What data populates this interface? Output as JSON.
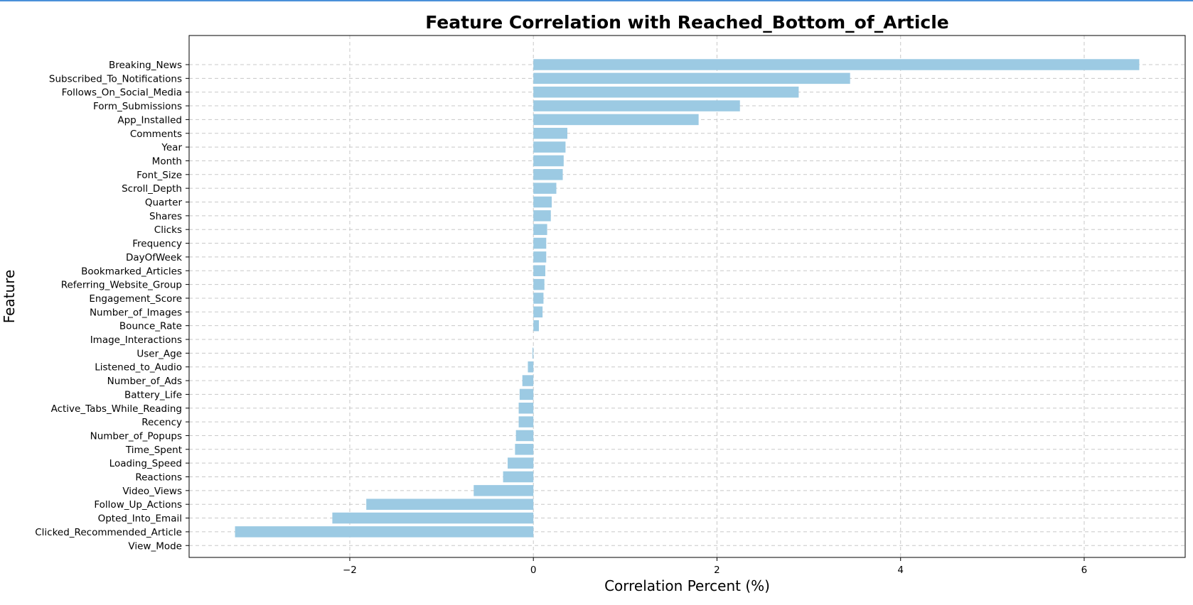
{
  "chart_data": {
    "type": "bar",
    "orientation": "horizontal",
    "title": "Feature Correlation with Reached_Bottom_of_Article",
    "xlabel": "Correlation Percent (%)",
    "ylabel": "Feature",
    "xlim": [
      -3.75,
      7.1
    ],
    "xticks": [
      -2,
      0,
      2,
      4,
      6
    ],
    "xtick_labels": [
      "−2",
      "0",
      "2",
      "4",
      "6"
    ],
    "grid": true,
    "bar_color": "#9ccae3",
    "categories": [
      "Breaking_News",
      "Subscribed_To_Notifications",
      "Follows_On_Social_Media",
      "Form_Submissions",
      "App_Installed",
      "Comments",
      "Year",
      "Month",
      "Font_Size",
      "Scroll_Depth",
      "Quarter",
      "Shares",
      "Clicks",
      "Frequency",
      "DayOfWeek",
      "Bookmarked_Articles",
      "Referring_Website_Group",
      "Engagement_Score",
      "Number_of_Images",
      "Bounce_Rate",
      "Image_Interactions",
      "User_Age",
      "Listened_to_Audio",
      "Number_of_Ads",
      "Battery_Life",
      "Active_Tabs_While_Reading",
      "Recency",
      "Number_of_Popups",
      "Time_Spent",
      "Loading_Speed",
      "Reactions",
      "Video_Views",
      "Follow_Up_Actions",
      "Opted_Into_Email",
      "Clicked_Recommended_Article",
      "View_Mode"
    ],
    "values": [
      6.6,
      3.45,
      2.89,
      2.25,
      1.8,
      0.37,
      0.35,
      0.33,
      0.32,
      0.25,
      0.2,
      0.19,
      0.15,
      0.14,
      0.14,
      0.13,
      0.12,
      0.11,
      0.1,
      0.06,
      0.0,
      -0.01,
      -0.06,
      -0.12,
      -0.15,
      -0.16,
      -0.16,
      -0.19,
      -0.2,
      -0.28,
      -0.33,
      -0.65,
      -1.82,
      -2.19,
      -3.25,
      0.0
    ]
  }
}
